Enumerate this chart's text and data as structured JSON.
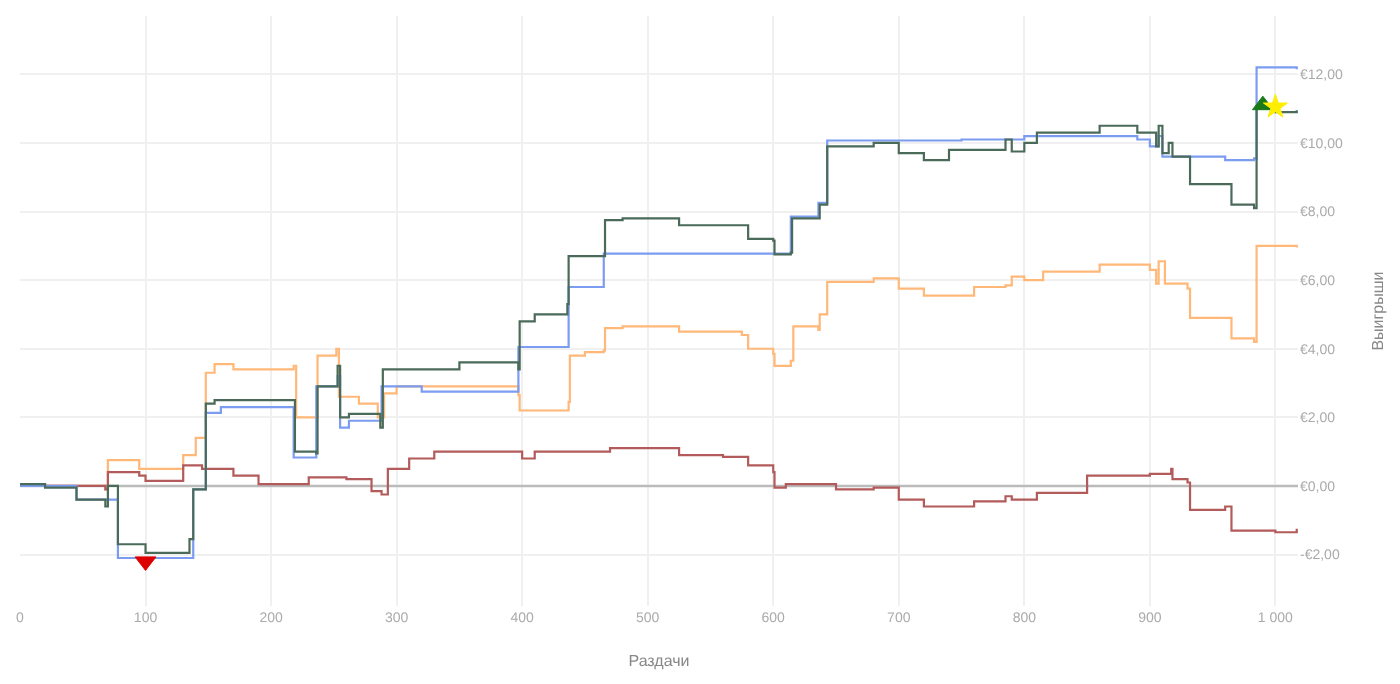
{
  "chart_data": {
    "type": "step",
    "xlabel": "Раздачи",
    "ylabel": "Выигрыши",
    "xlim": [
      0,
      1018
    ],
    "ylim": [
      -3.5,
      13.7
    ],
    "xticks": [
      0,
      100,
      200,
      300,
      400,
      500,
      600,
      700,
      800,
      900,
      {
        "value": 1000,
        "label": "1 000"
      }
    ],
    "yticks": [
      {
        "value": -2,
        "label": "-€2,00"
      },
      {
        "value": 0,
        "label": "€0,00"
      },
      {
        "value": 2,
        "label": "€2,00"
      },
      {
        "value": 4,
        "label": "€4,00"
      },
      {
        "value": 6,
        "label": "€6,00"
      },
      {
        "value": 8,
        "label": "€8,00"
      },
      {
        "value": 10,
        "label": "€10,00"
      },
      {
        "value": 12,
        "label": "€12,00"
      }
    ],
    "grid": true,
    "legend": false,
    "marker": "none",
    "ref_lines": [
      {
        "axis": "y",
        "value": 0,
        "color": "#bbbbbb"
      }
    ],
    "series": [
      {
        "color": "#ffb878",
        "x": [
          0,
          68,
          70,
          95,
          130,
          140,
          148,
          155,
          170,
          218,
          220,
          236,
          237,
          252,
          254,
          270,
          285,
          290,
          300,
          350,
          397,
          398,
          437,
          438,
          450,
          465,
          466,
          480,
          525,
          575,
          580,
          600,
          601,
          614,
          616,
          636,
          637,
          643,
          680,
          700,
          720,
          760,
          785,
          790,
          800,
          815,
          860,
          900,
          905,
          907,
          912,
          930,
          932,
          960,
          965,
          983,
          985,
          1017
        ],
        "values": [
          0,
          -0.1,
          0.75,
          0.5,
          0.9,
          1.4,
          3.3,
          3.55,
          3.4,
          3.5,
          2.0,
          2.0,
          3.8,
          4.0,
          2.6,
          2.4,
          2.0,
          2.7,
          2.9,
          2.9,
          2.65,
          2.2,
          2.45,
          3.8,
          3.9,
          3.95,
          4.6,
          4.65,
          4.5,
          4.4,
          4.0,
          3.85,
          3.5,
          3.65,
          4.65,
          4.55,
          5.0,
          5.95,
          6.05,
          5.75,
          5.55,
          5.8,
          5.85,
          6.1,
          6.0,
          6.25,
          6.45,
          6.3,
          5.9,
          6.55,
          5.9,
          5.75,
          4.9,
          4.9,
          4.3,
          4.2,
          7.0,
          6.95
        ]
      },
      {
        "color": "#b35a5a",
        "x": [
          0,
          68,
          70,
          95,
          100,
          130,
          145,
          170,
          190,
          230,
          260,
          280,
          288,
          293,
          310,
          330,
          400,
          410,
          440,
          470,
          480,
          525,
          560,
          580,
          600,
          601,
          610,
          650,
          680,
          700,
          720,
          760,
          785,
          790,
          810,
          850,
          900,
          917,
          918,
          930,
          932,
          960,
          965,
          1000,
          1017
        ],
        "values": [
          0,
          -0.1,
          0.4,
          0.3,
          0.15,
          0.6,
          0.5,
          0.3,
          0.05,
          0.25,
          0.2,
          -0.15,
          -0.25,
          0.5,
          0.8,
          1.0,
          0.8,
          1.0,
          1.0,
          1.1,
          1.1,
          0.9,
          0.85,
          0.6,
          0.4,
          -0.05,
          0.05,
          -0.1,
          -0.05,
          -0.4,
          -0.6,
          -0.45,
          -0.3,
          -0.4,
          -0.2,
          0.3,
          0.35,
          0.5,
          0.2,
          0.1,
          -0.7,
          -0.6,
          -1.3,
          -1.35,
          -1.25
        ]
      },
      {
        "color": "#7b9cf0",
        "x": [
          0,
          45,
          78,
          138,
          148,
          160,
          218,
          236,
          253,
          255,
          262,
          288,
          320,
          397,
          437,
          465,
          614,
          636,
          643,
          750,
          800,
          890,
          900,
          907,
          910,
          960,
          983,
          985,
          1017
        ],
        "values": [
          0,
          -0.4,
          -2.1,
          -0.1,
          2.13,
          2.3,
          0.83,
          2.9,
          3.2,
          1.7,
          1.9,
          2.9,
          2.75,
          4.05,
          5.8,
          6.77,
          7.85,
          8.25,
          10.07,
          10.1,
          10.2,
          10.1,
          9.9,
          10.2,
          9.6,
          9.5,
          9.55,
          12.2,
          12.15
        ]
      },
      {
        "color": "#4a6b5a",
        "x": [
          0,
          20,
          45,
          68,
          70,
          78,
          100,
          135,
          138,
          148,
          155,
          218,
          219,
          236,
          237,
          253,
          255,
          262,
          287,
          289,
          300,
          350,
          397,
          398,
          410,
          436,
          437,
          465,
          466,
          480,
          525,
          575,
          580,
          600,
          601,
          614,
          615,
          636,
          637,
          643,
          680,
          700,
          720,
          740,
          783,
          785,
          790,
          800,
          810,
          860,
          890,
          905,
          907,
          910,
          915,
          918,
          930,
          932,
          960,
          965,
          983,
          985,
          1000,
          1017
        ],
        "values": [
          0.05,
          -0.05,
          -0.4,
          -0.6,
          0,
          -1.7,
          -1.95,
          -1.55,
          -0.1,
          2.4,
          2.5,
          2.5,
          1.0,
          0.95,
          2.9,
          3.5,
          2.0,
          2.1,
          1.7,
          3.4,
          3.4,
          3.6,
          3.4,
          4.8,
          5.0,
          5.3,
          6.7,
          6.7,
          7.75,
          7.8,
          7.6,
          7.6,
          7.2,
          7.15,
          6.75,
          6.8,
          7.8,
          7.8,
          8.2,
          9.9,
          10.0,
          9.7,
          9.5,
          9.8,
          9.8,
          10.1,
          9.75,
          10.0,
          10.3,
          10.5,
          10.3,
          9.9,
          10.5,
          9.7,
          10.0,
          9.6,
          9.6,
          8.8,
          8.8,
          8.2,
          8.1,
          11.0,
          10.9,
          10.95
        ]
      },
      {
        "type": "scatter",
        "marker": "triangle-down",
        "color": "#dd0000",
        "x": [
          100
        ],
        "values": [
          -2.2
        ]
      },
      {
        "type": "scatter",
        "marker": "triangle",
        "color": "#1a7a1a",
        "x": [
          990
        ],
        "values": [
          11.1
        ]
      },
      {
        "type": "scatter",
        "marker": "star",
        "color": "#ffee00",
        "x": [
          1000
        ],
        "values": [
          11.05
        ]
      }
    ]
  }
}
